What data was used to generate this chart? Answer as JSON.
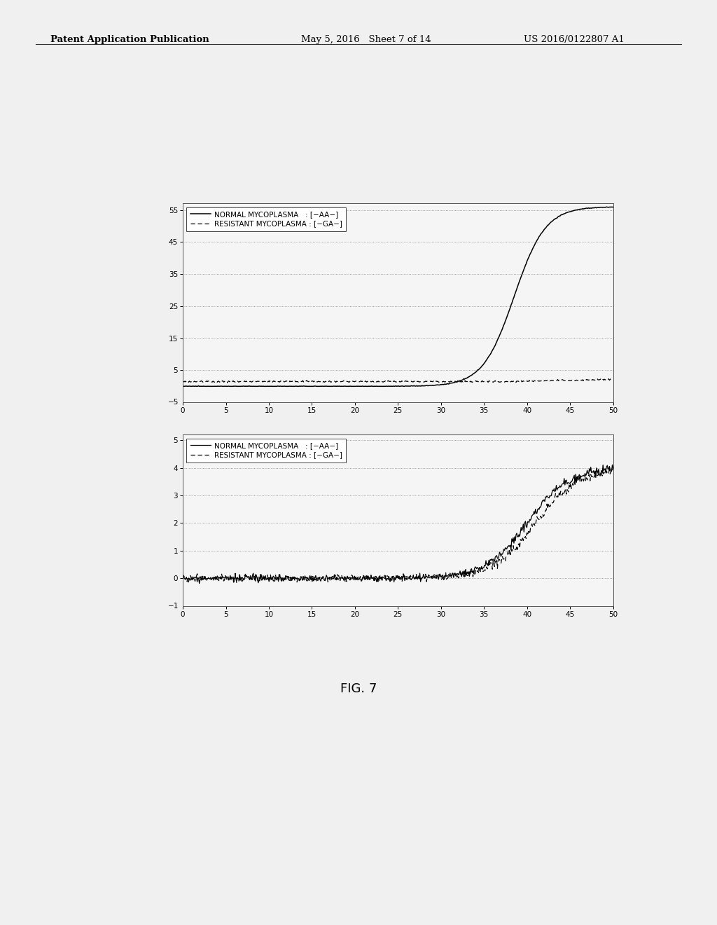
{
  "background_color": "#f0f0f0",
  "page_background": "#f0f0f0",
  "header_left": "Patent Application Publication",
  "header_mid": "May 5, 2016   Sheet 7 of 14",
  "header_right": "US 2016/0122807 A1",
  "fig_label": "FIG. 7",
  "chart1": {
    "xlim": [
      0,
      50
    ],
    "ylim": [
      -5,
      57
    ],
    "xticks": [
      0,
      5,
      10,
      15,
      20,
      25,
      30,
      35,
      40,
      45,
      50
    ],
    "yticks": [
      5,
      15,
      25,
      35,
      45,
      55
    ],
    "ytick_labels": [
      "5",
      "15",
      "25",
      "35",
      "45",
      "55"
    ],
    "legend_line1": "NORMAL MYCOPLASMA   : [−AA−]",
    "legend_line2": "RESISTANT MYCOPLASMA : [−GA−]",
    "grid_color": "#aaaaaa",
    "line_color": "#000000"
  },
  "chart2": {
    "xlim": [
      0,
      50
    ],
    "ylim": [
      -1,
      5.2
    ],
    "xticks": [
      0,
      5,
      10,
      15,
      20,
      25,
      30,
      35,
      40,
      45,
      50
    ],
    "yticks": [
      0,
      1,
      2,
      3,
      4,
      5
    ],
    "ytick_labels": [
      "0",
      "1",
      "2",
      "3",
      "4",
      "5"
    ],
    "legend_line1": "NORMAL MYCOPLASMA   : [−AA−]",
    "legend_line2": "RESISTANT MYCOPLASMA : [−GA−]",
    "grid_color": "#aaaaaa",
    "line_color": "#000000"
  }
}
